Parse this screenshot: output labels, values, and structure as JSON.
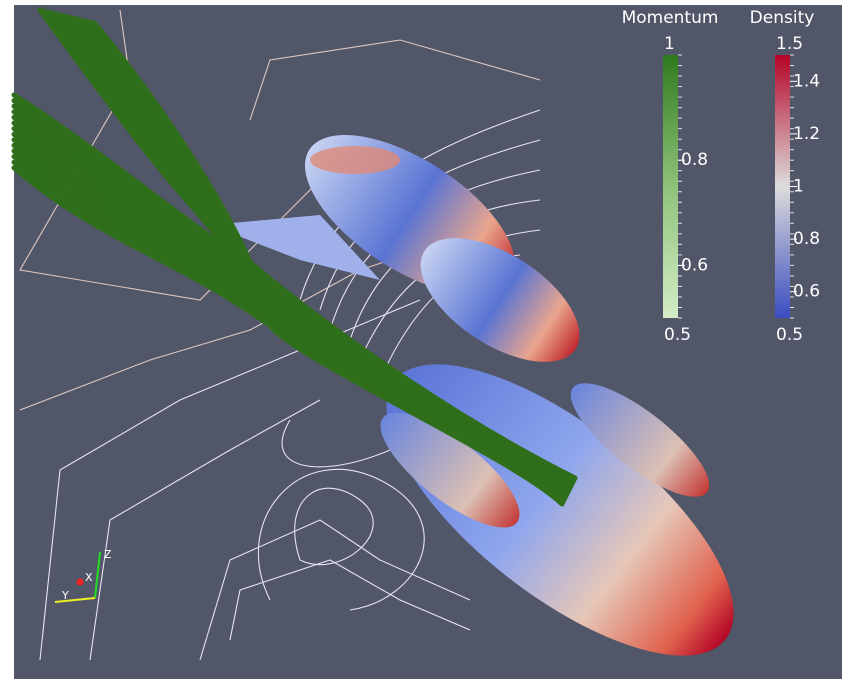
{
  "legends": [
    {
      "title": "Momentum",
      "ticks": [
        1,
        0.8,
        0.6,
        0.5
      ],
      "colors": [
        "#d4edc6",
        "#8fc27a",
        "#2f7a1d"
      ]
    },
    {
      "title": "Density",
      "ticks": [
        1.5,
        1.4,
        1.2,
        1,
        0.8,
        0.6,
        0.5
      ],
      "colors": [
        "#3b4cc0",
        "#dddcdc",
        "#b40426"
      ]
    }
  ],
  "axes": {
    "z": "Z",
    "x": "X",
    "y": "Y"
  }
}
